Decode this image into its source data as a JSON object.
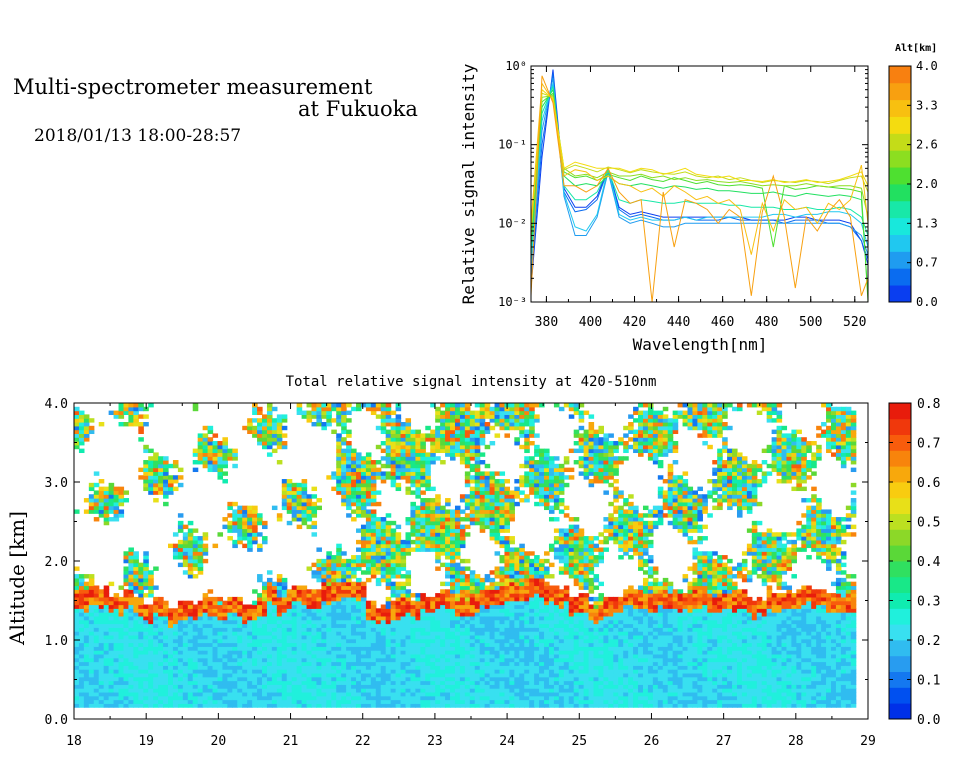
{
  "header": {
    "title_line1": "Multi-spectrometer measurement",
    "title_line2": "at Fukuoka",
    "datetime": "2018/01/13 18:00-28:57"
  },
  "chart_data": [
    {
      "type": "line",
      "title": "",
      "xlabel": "Wavelength[nm]",
      "ylabel": "Relative signal intensity",
      "y_scale": "log",
      "xlim": [
        373,
        526
      ],
      "ylim": [
        0.001,
        1
      ],
      "x_ticks": [
        "380",
        "400",
        "420",
        "440",
        "460",
        "480",
        "500",
        "520"
      ],
      "y_ticks": [
        "10⁻³",
        "10⁻²",
        "10⁻¹",
        "10⁰"
      ],
      "colorbar": {
        "title": "Alt[km]",
        "ticks": [
          "0.0",
          "0.7",
          "1.3",
          "2.0",
          "2.6",
          "3.3",
          "4.0"
        ],
        "colors": [
          "#0a3ef0",
          "#0a6cf0",
          "#1f9cf0",
          "#20c8f0",
          "#18e8dc",
          "#18e8a8",
          "#22e060",
          "#4ee030",
          "#8cde20",
          "#c4dc18",
          "#f4dc10",
          "#f8c010",
          "#f8a010",
          "#f88010"
        ]
      },
      "x": [
        373,
        378,
        383,
        388,
        393,
        398,
        403,
        408,
        413,
        418,
        423,
        428,
        433,
        438,
        443,
        448,
        453,
        458,
        463,
        468,
        473,
        478,
        483,
        488,
        493,
        498,
        503,
        508,
        513,
        518,
        523,
        526
      ],
      "series": [
        {
          "color": "#0a3ef0",
          "values": [
            0.0015,
            0.07,
            0.9,
            0.028,
            0.016,
            0.016,
            0.022,
            0.05,
            0.016,
            0.013,
            0.014,
            0.013,
            0.012,
            0.012,
            0.012,
            0.012,
            0.012,
            0.012,
            0.012,
            0.012,
            0.011,
            0.011,
            0.011,
            0.011,
            0.012,
            0.012,
            0.011,
            0.011,
            0.011,
            0.01,
            0.006,
            0.003
          ]
        },
        {
          "color": "#0a6cf0",
          "values": [
            0.002,
            0.1,
            0.8,
            0.025,
            0.014,
            0.015,
            0.02,
            0.048,
            0.015,
            0.012,
            0.013,
            0.012,
            0.011,
            0.011,
            0.012,
            0.011,
            0.011,
            0.011,
            0.012,
            0.011,
            0.011,
            0.011,
            0.011,
            0.01,
            0.011,
            0.011,
            0.011,
            0.01,
            0.01,
            0.009,
            0.006,
            0.0035
          ]
        },
        {
          "color": "#1f9cf0",
          "values": [
            0.002,
            0.15,
            0.7,
            0.022,
            0.007,
            0.007,
            0.012,
            0.045,
            0.012,
            0.01,
            0.011,
            0.01,
            0.009,
            0.009,
            0.01,
            0.01,
            0.01,
            0.01,
            0.01,
            0.01,
            0.01,
            0.01,
            0.01,
            0.01,
            0.01,
            0.01,
            0.01,
            0.01,
            0.01,
            0.009,
            0.007,
            0.004
          ]
        },
        {
          "color": "#20c8f0",
          "values": [
            0.003,
            0.2,
            0.6,
            0.024,
            0.009,
            0.008,
            0.013,
            0.05,
            0.013,
            0.011,
            0.012,
            0.011,
            0.011,
            0.011,
            0.012,
            0.011,
            0.012,
            0.012,
            0.012,
            0.012,
            0.012,
            0.012,
            0.013,
            0.013,
            0.012,
            0.013,
            0.013,
            0.014,
            0.014,
            0.013,
            0.01,
            0.005
          ]
        },
        {
          "color": "#18e8a8",
          "values": [
            0.004,
            0.25,
            0.55,
            0.03,
            0.02,
            0.02,
            0.025,
            0.048,
            0.02,
            0.018,
            0.02,
            0.019,
            0.018,
            0.018,
            0.019,
            0.018,
            0.018,
            0.018,
            0.017,
            0.017,
            0.016,
            0.016,
            0.016,
            0.015,
            0.015,
            0.016,
            0.015,
            0.015,
            0.016,
            0.015,
            0.012,
            0.007
          ]
        },
        {
          "color": "#22e060",
          "values": [
            0.005,
            0.3,
            0.5,
            0.04,
            0.03,
            0.032,
            0.03,
            0.04,
            0.032,
            0.03,
            0.032,
            0.03,
            0.028,
            0.03,
            0.029,
            0.027,
            0.028,
            0.026,
            0.026,
            0.025,
            0.024,
            0.024,
            0.025,
            0.023,
            0.022,
            0.024,
            0.023,
            0.022,
            0.023,
            0.022,
            0.02,
            0.0012
          ]
        },
        {
          "color": "#4ee030",
          "values": [
            0.006,
            0.35,
            0.45,
            0.045,
            0.038,
            0.04,
            0.035,
            0.042,
            0.038,
            0.035,
            0.04,
            0.036,
            0.034,
            0.038,
            0.035,
            0.032,
            0.034,
            0.031,
            0.03,
            0.031,
            0.03,
            0.028,
            0.005,
            0.03,
            0.027,
            0.028,
            0.03,
            0.029,
            0.028,
            0.027,
            0.025,
            0.001
          ]
        },
        {
          "color": "#8cde20",
          "values": [
            0.007,
            0.4,
            0.42,
            0.05,
            0.04,
            0.042,
            0.038,
            0.045,
            0.04,
            0.04,
            0.042,
            0.038,
            0.04,
            0.036,
            0.038,
            0.035,
            0.036,
            0.034,
            0.033,
            0.034,
            0.032,
            0.03,
            0.031,
            0.03,
            0.03,
            0.032,
            0.03,
            0.029,
            0.03,
            0.03,
            0.028,
            0.012
          ]
        },
        {
          "color": "#c4dc18",
          "values": [
            0.008,
            0.45,
            0.4,
            0.048,
            0.055,
            0.05,
            0.045,
            0.052,
            0.048,
            0.044,
            0.048,
            0.045,
            0.043,
            0.042,
            0.045,
            0.04,
            0.038,
            0.04,
            0.036,
            0.038,
            0.035,
            0.033,
            0.035,
            0.034,
            0.033,
            0.035,
            0.034,
            0.032,
            0.035,
            0.038,
            0.04,
            0.025
          ]
        },
        {
          "color": "#f4dc10",
          "values": [
            0.009,
            0.5,
            0.38,
            0.05,
            0.06,
            0.055,
            0.05,
            0.05,
            0.05,
            0.045,
            0.05,
            0.048,
            0.042,
            0.045,
            0.05,
            0.042,
            0.04,
            0.038,
            0.04,
            0.035,
            0.035,
            0.034,
            0.036,
            0.033,
            0.034,
            0.036,
            0.033,
            0.034,
            0.036,
            0.04,
            0.045,
            0.03
          ]
        },
        {
          "color": "#f8c010",
          "values": [
            0.01,
            0.6,
            0.36,
            0.04,
            0.048,
            0.045,
            0.035,
            0.04,
            0.032,
            0.03,
            0.025,
            0.028,
            0.022,
            0.03,
            0.025,
            0.02,
            0.022,
            0.018,
            0.02,
            0.015,
            0.004,
            0.018,
            0.008,
            0.02,
            0.015,
            0.016,
            0.01,
            0.018,
            0.015,
            0.02,
            0.055,
            0.01
          ]
        },
        {
          "color": "#f8a010",
          "values": [
            0.0012,
            0.75,
            0.34,
            0.03,
            0.03,
            0.025,
            0.03,
            0.05,
            0.025,
            0.018,
            0.02,
            0.001,
            0.025,
            0.005,
            0.02,
            0.018,
            0.015,
            0.01,
            0.015,
            0.012,
            0.0012,
            0.014,
            0.04,
            0.012,
            0.0015,
            0.012,
            0.008,
            0.014,
            0.02,
            0.012,
            0.0012,
            0.002
          ]
        }
      ]
    },
    {
      "type": "heatmap",
      "title": "Total relative signal intensity at 420-510nm",
      "xlabel": "",
      "ylabel": "Altitude [km]",
      "xlim": [
        18,
        29
      ],
      "ylim": [
        0,
        4.0
      ],
      "x_ticks": [
        "18",
        "19",
        "20",
        "21",
        "22",
        "23",
        "24",
        "25",
        "26",
        "27",
        "28",
        "29"
      ],
      "y_ticks": [
        "0.0",
        "1.0",
        "2.0",
        "3.0",
        "4.0"
      ],
      "x_data_end": 28.83,
      "y_data_start": 0.15,
      "colorbar": {
        "ticks": [
          "0.0",
          "0.1",
          "0.2",
          "0.3",
          "0.4",
          "0.5",
          "0.6",
          "0.7",
          "0.8"
        ],
        "range": [
          0,
          0.8
        ],
        "colors": [
          "#0030e8",
          "#0050f0",
          "#1478f0",
          "#289cf0",
          "#30bcf0",
          "#38e0f0",
          "#20f0dc",
          "#10ecb0",
          "#18e888",
          "#30e060",
          "#5ad838",
          "#8cd828",
          "#bce020",
          "#e8e018",
          "#f8cc10",
          "#f8a80c",
          "#f8840c",
          "#f85c0c",
          "#f0380c",
          "#e81c0c"
        ]
      },
      "boundary_altitude_km": [
        1.5,
        1.55,
        1.52,
        1.45,
        1.5,
        1.4,
        1.35,
        1.4,
        1.3,
        1.35,
        1.38,
        1.42,
        1.38,
        1.4,
        1.42,
        1.35,
        1.4,
        1.55,
        1.45,
        1.55,
        1.55,
        1.5,
        1.58,
        1.6,
        1.62,
        1.62,
        1.35,
        1.3,
        1.4,
        1.42,
        1.38,
        1.45,
        1.5,
        1.48,
        1.4,
        1.42,
        1.55,
        1.55,
        1.6,
        1.58,
        1.62,
        1.65,
        1.55,
        1.55,
        1.4,
        1.45,
        1.3,
        1.38,
        1.42,
        1.55,
        1.48,
        1.45,
        1.5,
        1.52,
        1.45,
        1.52,
        1.5,
        1.45,
        1.48,
        1.5,
        1.4,
        1.42,
        1.48,
        1.5,
        1.5,
        1.55,
        1.52,
        1.45,
        1.45,
        1.48
      ],
      "boundary_layer_signal": 0.22,
      "boundary_edge_signal": 0.7
    }
  ]
}
